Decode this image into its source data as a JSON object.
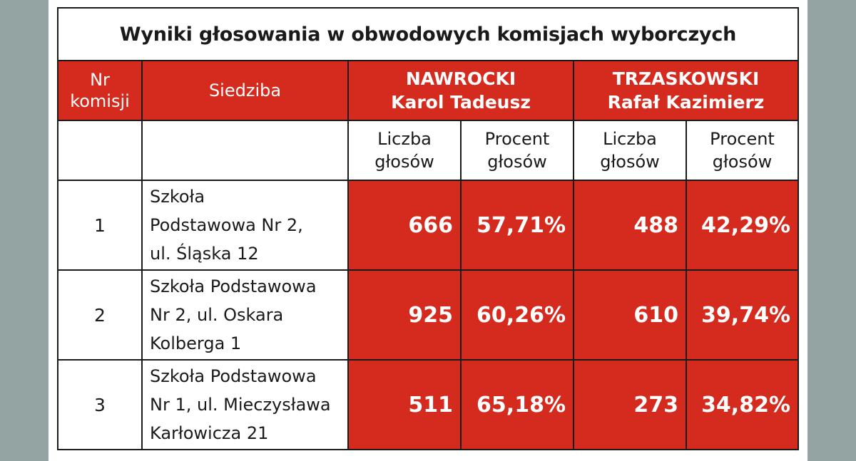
{
  "title": "Wyniki głosowania w obwodowych komisjach wyborczych",
  "header": {
    "nr_line1": "Nr",
    "nr_line2": "komisji",
    "siedziba": "Siedziba",
    "candidates": [
      {
        "surname": "NAWROCKI",
        "given": "Karol Tadeusz"
      },
      {
        "surname": "TRZASKOWSKI",
        "given": "Rafał Kazimierz"
      }
    ],
    "count_line1": "Liczba",
    "count_line2": "głosów",
    "pct_line1": "Procent",
    "pct_line2": "głosów"
  },
  "rows": [
    {
      "nr": "1",
      "seat_lines": [
        "Szkoła",
        "Podstawowa Nr 2,",
        "ul. Śląska 12"
      ],
      "nawrocki_votes": "666",
      "nawrocki_pct": "57,71%",
      "trzaskowski_votes": "488",
      "trzaskowski_pct": "42,29%"
    },
    {
      "nr": "2",
      "seat_lines": [
        "Szkoła Podstawowa",
        "Nr 2, ul. Oskara",
        "Kolberga 1"
      ],
      "nawrocki_votes": "925",
      "nawrocki_pct": "60,26%",
      "trzaskowski_votes": "610",
      "trzaskowski_pct": "39,74%"
    },
    {
      "nr": "3",
      "seat_lines": [
        "Szkoła Podstawowa",
        "Nr 1, ul. Mieczysława",
        "Karłowicza 21"
      ],
      "nawrocki_votes": "511",
      "nawrocki_pct": "65,18%",
      "trzaskowski_votes": "273",
      "trzaskowski_pct": "34,82%"
    }
  ],
  "colors": {
    "red": "#d52b1e",
    "background": "#94a4a3"
  }
}
